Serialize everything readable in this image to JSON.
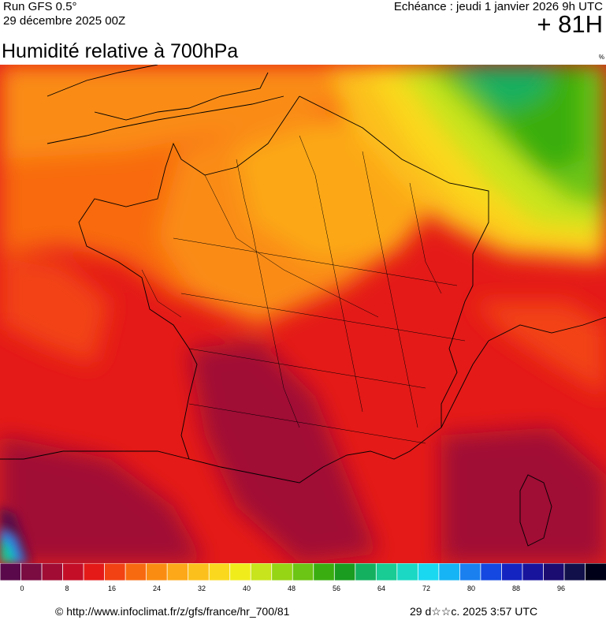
{
  "header": {
    "run": "Run GFS 0.5°",
    "run_date": "29 décembre 2025 00Z",
    "echeance": "Echéance : jeudi 1 janvier 2026 9h UTC",
    "offset": "+ 81H"
  },
  "title": "Humidité relative à 700hPa",
  "unit": "%",
  "colors": {
    "scale": [
      "#5a0a4a",
      "#7a0c42",
      "#a00c34",
      "#c40e28",
      "#e41a18",
      "#f24214",
      "#f86a10",
      "#fa8c12",
      "#fca818",
      "#fcc01c",
      "#fad81e",
      "#f0ec1c",
      "#c8e41c",
      "#96d416",
      "#6cc414",
      "#3aae10",
      "#1a9c20",
      "#14b060",
      "#18cc94",
      "#1ad8c4",
      "#1ad8f0",
      "#16b4f4",
      "#1a80f0",
      "#1448e0",
      "#1424c0",
      "#18149c",
      "#1a0c70",
      "#12104a",
      "#000018"
    ],
    "outline": "#000000"
  },
  "scale_ticks": [
    "0",
    "8",
    "16",
    "24",
    "32",
    "40",
    "48",
    "56",
    "64",
    "72",
    "80",
    "88",
    "96"
  ],
  "footer": {
    "source": "© http://www.infoclimat.fr/z/gfs/france/hr_700/81",
    "generated": "29 d☆☆c. 2025  3:57 UTC"
  }
}
